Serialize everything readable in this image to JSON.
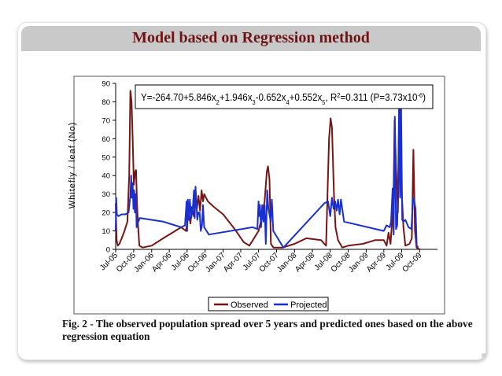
{
  "slide": {
    "title": "Model based on Regression method",
    "caption": "Fig. 2 - The observed population spread over 5 years and predicted ones based on the above regression equation"
  },
  "colors": {
    "observed": "#7a1414",
    "projected": "#1a2fd0",
    "title_text": "#6e1414",
    "title_bar": "#c9c9c9"
  },
  "chart_data": {
    "type": "line",
    "ylabel": "Whitefly / leaf (No)",
    "ylim": [
      0,
      90
    ],
    "yticks": [
      0,
      10,
      20,
      30,
      40,
      50,
      60,
      70,
      80,
      90
    ],
    "xlim": [
      "2005-07-01",
      "2009-12-31"
    ],
    "xticks": [
      "Jul-05",
      "Oct-05",
      "Jan-06",
      "Apr-06",
      "Jul-06",
      "Oct-06",
      "Jan-07",
      "Apr-07",
      "Jul-07",
      "Oct-07",
      "Jan-08",
      "Apr-08",
      "Jul-08",
      "Oct-08",
      "Jan-09",
      "Apr-09",
      "Jul-09",
      "Oct-09"
    ],
    "grid": false,
    "legend": "bottom",
    "annotation": {
      "equation": "Y=-264.70+5.846x2+1.946x3-0.652x4+0.552x5, R2=0.311 (P=3.73x10-6)",
      "parts": [
        {
          "t": "Y=-264.70+5.846x",
          "s": "n"
        },
        {
          "t": "2",
          "s": "sub"
        },
        {
          "t": "+1.946x",
          "s": "n"
        },
        {
          "t": "3",
          "s": "sub"
        },
        {
          "t": "-0.652x",
          "s": "n"
        },
        {
          "t": "4",
          "s": "sub"
        },
        {
          "t": "+0.552x",
          "s": "n"
        },
        {
          "t": "5",
          "s": "sub"
        },
        {
          "t": ", R",
          "s": "n"
        },
        {
          "t": "2",
          "s": "sup"
        },
        {
          "t": "=0.311 (P=3.73x10",
          "s": "n"
        },
        {
          "t": "-6",
          "s": "sup"
        },
        {
          "t": ")",
          "s": "n"
        }
      ]
    },
    "series": [
      {
        "name": "Observed",
        "color": "#7a1414",
        "points": [
          [
            "2005-07-01",
            25
          ],
          [
            "2005-07-06",
            5
          ],
          [
            "2005-07-12",
            2
          ],
          [
            "2005-07-20",
            3
          ],
          [
            "2005-08-01",
            6
          ],
          [
            "2005-08-15",
            10
          ],
          [
            "2005-08-30",
            15
          ],
          [
            "2005-09-08",
            40
          ],
          [
            "2005-09-14",
            86
          ],
          [
            "2005-09-20",
            80
          ],
          [
            "2005-09-26",
            60
          ],
          [
            "2005-10-02",
            35
          ],
          [
            "2005-10-08",
            42
          ],
          [
            "2005-10-13",
            43
          ],
          [
            "2005-10-18",
            25
          ],
          [
            "2005-10-24",
            12
          ],
          [
            "2005-10-30",
            2
          ],
          [
            "2005-11-15",
            1
          ],
          [
            "2006-01-01",
            2
          ],
          [
            "2006-03-01",
            6
          ],
          [
            "2006-05-01",
            10
          ],
          [
            "2006-06-01",
            12
          ],
          [
            "2006-06-25",
            10
          ],
          [
            "2006-07-10",
            20
          ],
          [
            "2006-07-18",
            14
          ],
          [
            "2006-07-26",
            23
          ],
          [
            "2006-08-04",
            18
          ],
          [
            "2006-08-12",
            26
          ],
          [
            "2006-08-20",
            22
          ],
          [
            "2006-08-28",
            29
          ],
          [
            "2006-09-05",
            21
          ],
          [
            "2006-09-13",
            32
          ],
          [
            "2006-09-20",
            26
          ],
          [
            "2006-09-26",
            30
          ],
          [
            "2006-10-15",
            26
          ],
          [
            "2006-11-15",
            23
          ],
          [
            "2007-01-01",
            19
          ],
          [
            "2007-03-01",
            11
          ],
          [
            "2007-04-15",
            4
          ],
          [
            "2007-05-15",
            2
          ],
          [
            "2007-07-01",
            10
          ],
          [
            "2007-07-15",
            16
          ],
          [
            "2007-08-01",
            26
          ],
          [
            "2007-08-12",
            42
          ],
          [
            "2007-08-18",
            45
          ],
          [
            "2007-08-26",
            38
          ],
          [
            "2007-09-02",
            3
          ],
          [
            "2007-09-15",
            1
          ],
          [
            "2007-11-01",
            1
          ],
          [
            "2008-01-01",
            3
          ],
          [
            "2008-03-01",
            6
          ],
          [
            "2008-05-15",
            5
          ],
          [
            "2008-06-10",
            2
          ],
          [
            "2008-06-25",
            60
          ],
          [
            "2008-07-03",
            71
          ],
          [
            "2008-07-10",
            66
          ],
          [
            "2008-07-20",
            30
          ],
          [
            "2008-07-28",
            12
          ],
          [
            "2008-08-10",
            5
          ],
          [
            "2008-09-01",
            1
          ],
          [
            "2008-10-01",
            2
          ],
          [
            "2008-12-15",
            3
          ],
          [
            "2009-02-15",
            5
          ],
          [
            "2009-04-01",
            5
          ],
          [
            "2009-04-15",
            2
          ],
          [
            "2009-04-25",
            9
          ],
          [
            "2009-05-05",
            3
          ],
          [
            "2009-05-20",
            25
          ],
          [
            "2009-05-26",
            70
          ],
          [
            "2009-06-02",
            45
          ],
          [
            "2009-06-12",
            20
          ],
          [
            "2009-06-22",
            80
          ],
          [
            "2009-07-02",
            30
          ],
          [
            "2009-07-10",
            12
          ],
          [
            "2009-07-20",
            2
          ],
          [
            "2009-08-10",
            3
          ],
          [
            "2009-08-22",
            6
          ],
          [
            "2009-08-30",
            54
          ],
          [
            "2009-09-07",
            10
          ],
          [
            "2009-09-15",
            1
          ],
          [
            "2009-10-01",
            0
          ]
        ]
      },
      {
        "name": "Projected",
        "color": "#1a2fd0",
        "points": [
          [
            "2005-07-01",
            10
          ],
          [
            "2005-07-04",
            28
          ],
          [
            "2005-07-07",
            19
          ],
          [
            "2005-07-15",
            18
          ],
          [
            "2005-08-01",
            19
          ],
          [
            "2005-08-20",
            19
          ],
          [
            "2005-09-05",
            20
          ],
          [
            "2005-09-14",
            29
          ],
          [
            "2005-09-18",
            40
          ],
          [
            "2005-09-22",
            28
          ],
          [
            "2005-09-26",
            36
          ],
          [
            "2005-09-30",
            22
          ],
          [
            "2005-10-04",
            32
          ],
          [
            "2005-10-07",
            20
          ],
          [
            "2005-10-10",
            30
          ],
          [
            "2005-10-13",
            26
          ],
          [
            "2005-10-16",
            12
          ],
          [
            "2005-10-19",
            15
          ],
          [
            "2005-10-25",
            15
          ],
          [
            "2005-11-01",
            17
          ],
          [
            "2006-01-01",
            16
          ],
          [
            "2006-03-01",
            15
          ],
          [
            "2006-05-01",
            13
          ],
          [
            "2006-06-01",
            12
          ],
          [
            "2006-06-20",
            13
          ],
          [
            "2006-06-28",
            26
          ],
          [
            "2006-07-01",
            10
          ],
          [
            "2006-07-05",
            27
          ],
          [
            "2006-07-10",
            16
          ],
          [
            "2006-07-15",
            27
          ],
          [
            "2006-07-22",
            17
          ],
          [
            "2006-07-30",
            22
          ],
          [
            "2006-08-05",
            32
          ],
          [
            "2006-08-09",
            17
          ],
          [
            "2006-08-13",
            34
          ],
          [
            "2006-08-17",
            26
          ],
          [
            "2006-08-22",
            16
          ],
          [
            "2006-08-28",
            20
          ],
          [
            "2006-09-03",
            20
          ],
          [
            "2006-09-09",
            10
          ],
          [
            "2006-09-15",
            13
          ],
          [
            "2006-09-20",
            24
          ],
          [
            "2006-09-26",
            12
          ],
          [
            "2006-10-20",
            8
          ],
          [
            "2007-06-01",
            12
          ],
          [
            "2007-06-25",
            11
          ],
          [
            "2007-07-01",
            26
          ],
          [
            "2007-07-04",
            18
          ],
          [
            "2007-07-08",
            24
          ],
          [
            "2007-07-14",
            12
          ],
          [
            "2007-07-20",
            24
          ],
          [
            "2007-07-26",
            15
          ],
          [
            "2007-08-01",
            24
          ],
          [
            "2007-08-07",
            3
          ],
          [
            "2007-08-14",
            32
          ],
          [
            "2007-08-20",
            22
          ],
          [
            "2007-08-26",
            19
          ],
          [
            "2007-09-01",
            15
          ],
          [
            "2007-09-07",
            27
          ],
          [
            "2007-09-14",
            10
          ],
          [
            "2007-11-05",
            1
          ],
          [
            "2008-06-01",
            25
          ],
          [
            "2008-06-20",
            26
          ],
          [
            "2008-07-01",
            18
          ],
          [
            "2008-07-10",
            28
          ],
          [
            "2008-07-18",
            22
          ],
          [
            "2008-07-26",
            26
          ],
          [
            "2008-08-03",
            21
          ],
          [
            "2008-08-10",
            27
          ],
          [
            "2008-08-18",
            19
          ],
          [
            "2008-08-25",
            27
          ],
          [
            "2008-09-02",
            21
          ],
          [
            "2008-09-10",
            15
          ],
          [
            "2009-04-01",
            10
          ],
          [
            "2009-04-15",
            13
          ],
          [
            "2009-05-01",
            12
          ],
          [
            "2009-05-08",
            15
          ],
          [
            "2009-05-16",
            33
          ],
          [
            "2009-05-21",
            8
          ],
          [
            "2009-05-27",
            72
          ],
          [
            "2009-06-02",
            11
          ],
          [
            "2009-06-08",
            13
          ],
          [
            "2009-06-13",
            36
          ],
          [
            "2009-06-18",
            80
          ],
          [
            "2009-06-23",
            28
          ],
          [
            "2009-06-28",
            79
          ],
          [
            "2009-07-04",
            16
          ],
          [
            "2009-07-10",
            15
          ],
          [
            "2009-07-20",
            16
          ],
          [
            "2009-08-05",
            12
          ],
          [
            "2009-08-20",
            11
          ],
          [
            "2009-08-28",
            28
          ],
          [
            "2009-09-04",
            26
          ],
          [
            "2009-09-10",
            22
          ],
          [
            "2009-09-16",
            2
          ],
          [
            "2009-09-24",
            1
          ]
        ]
      }
    ]
  }
}
